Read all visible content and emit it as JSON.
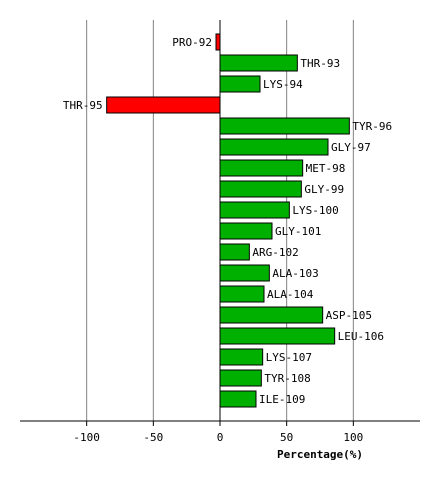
{
  "chart_data": {
    "type": "bar",
    "orientation": "horizontal",
    "xlabel": "Percentage(%)",
    "xlim": [
      -150,
      150
    ],
    "xticks": [
      -100,
      -50,
      0,
      50,
      100
    ],
    "grid": true,
    "colors": {
      "positive": "#00b000",
      "negative": "#ff0000",
      "border": "#000000",
      "grid": "#808080"
    },
    "bars": [
      {
        "label": "PRO-92",
        "value": -3
      },
      {
        "label": "THR-93",
        "value": 58
      },
      {
        "label": "LYS-94",
        "value": 30
      },
      {
        "label": "THR-95",
        "value": -85
      },
      {
        "label": "TYR-96",
        "value": 97
      },
      {
        "label": "GLY-97",
        "value": 81
      },
      {
        "label": "MET-98",
        "value": 62
      },
      {
        "label": "GLY-99",
        "value": 61
      },
      {
        "label": "LYS-100",
        "value": 52
      },
      {
        "label": "GLY-101",
        "value": 39
      },
      {
        "label": "ARG-102",
        "value": 22
      },
      {
        "label": "ALA-103",
        "value": 37
      },
      {
        "label": "ALA-104",
        "value": 33
      },
      {
        "label": "ASP-105",
        "value": 77
      },
      {
        "label": "LEU-106",
        "value": 86
      },
      {
        "label": "LYS-107",
        "value": 32
      },
      {
        "label": "TYR-108",
        "value": 31
      },
      {
        "label": "ILE-109",
        "value": 27
      }
    ]
  }
}
